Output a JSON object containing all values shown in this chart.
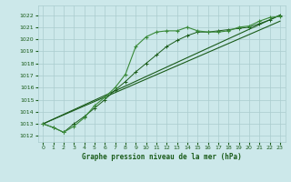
{
  "title": "Graphe pression niveau de la mer (hPa)",
  "bg_color": "#cce8ea",
  "grid_color": "#aaccce",
  "line_color_dark": "#1a5c1a",
  "line_color_light": "#3a8a3a",
  "xlim": [
    -0.5,
    23.5
  ],
  "ylim": [
    1011.5,
    1022.8
  ],
  "yticks": [
    1012,
    1013,
    1014,
    1015,
    1016,
    1017,
    1018,
    1019,
    1020,
    1021,
    1022
  ],
  "xticks": [
    0,
    1,
    2,
    3,
    4,
    5,
    6,
    7,
    8,
    9,
    10,
    11,
    12,
    13,
    14,
    15,
    16,
    17,
    18,
    19,
    20,
    21,
    22,
    23
  ],
  "series_wavy": {
    "x": [
      0,
      1,
      2,
      3,
      4,
      5,
      6,
      7,
      8,
      9,
      10,
      11,
      12,
      13,
      14,
      15,
      16,
      17,
      18,
      19,
      20,
      21,
      22,
      23
    ],
    "y": [
      1013.0,
      1012.7,
      1012.3,
      1012.8,
      1013.5,
      1014.5,
      1015.2,
      1016.0,
      1017.1,
      1019.4,
      1020.2,
      1020.6,
      1020.7,
      1020.7,
      1021.0,
      1020.7,
      1020.6,
      1020.6,
      1020.7,
      1021.0,
      1021.1,
      1021.5,
      1021.8,
      1021.9
    ]
  },
  "series_linear1": {
    "x": [
      0,
      23
    ],
    "y": [
      1013.0,
      1022.0
    ]
  },
  "series_linear2": {
    "x": [
      0,
      23
    ],
    "y": [
      1013.0,
      1021.5
    ]
  },
  "series_diagonal": {
    "x": [
      0,
      1,
      2,
      3,
      4,
      5,
      6,
      7,
      8,
      9,
      10,
      11,
      12,
      13,
      14,
      15,
      16,
      17,
      18,
      19,
      20,
      21,
      22,
      23
    ],
    "y": [
      1013.0,
      1012.7,
      1012.3,
      1013.0,
      1013.6,
      1014.3,
      1015.0,
      1015.8,
      1016.5,
      1017.3,
      1018.0,
      1018.7,
      1019.4,
      1019.9,
      1020.3,
      1020.6,
      1020.6,
      1020.7,
      1020.8,
      1020.9,
      1021.0,
      1021.3,
      1021.6,
      1022.0
    ]
  }
}
